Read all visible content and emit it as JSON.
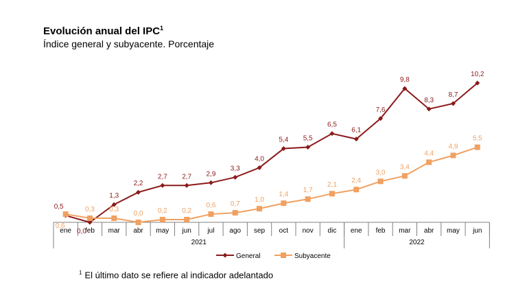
{
  "title": "Evolución anual del IPC",
  "title_footnote_mark": "1",
  "subtitle": "Índice general y subyacente. Porcentaje",
  "footnote_mark": "1",
  "footnote": "El último dato se refiere al indicador adelantado",
  "chart_data": {
    "type": "line",
    "title": "Evolución anual del IPC",
    "subtitle": "Índice general y subyacente. Porcentaje",
    "categories": [
      "ene",
      "feb",
      "mar",
      "abr",
      "may",
      "jun",
      "jul",
      "ago",
      "sep",
      "oct",
      "nov",
      "dic",
      "ene",
      "feb",
      "mar",
      "abr",
      "may",
      "jun"
    ],
    "year_groups": [
      {
        "label": "2021",
        "span": 12
      },
      {
        "label": "2022",
        "span": 6
      }
    ],
    "legend": "bottom",
    "grid": false,
    "series": [
      {
        "name": "General",
        "color": "#8B1A1A",
        "marker": "diamond",
        "values": [
          0.5,
          0.0,
          1.3,
          2.2,
          2.7,
          2.7,
          2.9,
          3.3,
          4.0,
          5.4,
          5.5,
          6.5,
          6.1,
          7.6,
          9.8,
          8.3,
          8.7,
          10.2
        ],
        "labels": [
          "0,5",
          "0,0",
          "1,3",
          "2,2",
          "2,7",
          "2,7",
          "2,9",
          "3,3",
          "4,0",
          "5,4",
          "5,5",
          "6,5",
          "6,1",
          "7,6",
          "9,8",
          "8,3",
          "8,7",
          "10,2"
        ]
      },
      {
        "name": "Subyacente",
        "color": "#F0A060",
        "marker": "square",
        "values": [
          0.6,
          0.3,
          0.3,
          0.0,
          0.2,
          0.2,
          0.6,
          0.7,
          1.0,
          1.4,
          1.7,
          2.1,
          2.4,
          3.0,
          3.4,
          4.4,
          4.9,
          5.5
        ],
        "labels": [
          "0,6",
          "0,3",
          "0,3",
          "0,0",
          "0,2",
          "0,2",
          "0,6",
          "0,7",
          "1,0",
          "1,4",
          "1,7",
          "2,1",
          "2,4",
          "3,0",
          "3,4",
          "4,4",
          "4,9",
          "5,5"
        ]
      }
    ]
  }
}
